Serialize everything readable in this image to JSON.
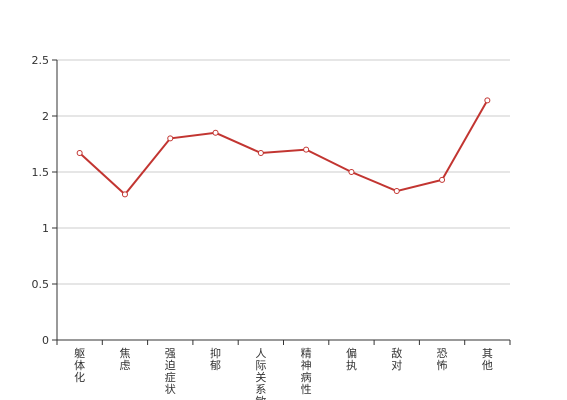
{
  "chart_data": {
    "type": "line",
    "categories": [
      "躯体化",
      "焦虑",
      "强迫症状",
      "抑郁",
      "人际关系敏感",
      "精神病性",
      "偏执",
      "敌对",
      "恐怖",
      "其他"
    ],
    "series": [
      {
        "color": "#c23531",
        "values": [
          1.67,
          1.3,
          1.8,
          1.85,
          1.67,
          1.7,
          1.5,
          1.33,
          1.43,
          2.14
        ]
      }
    ],
    "ylim": [
      0,
      2.5
    ],
    "yticks": [
      0,
      0.5,
      1,
      1.5,
      2,
      2.5
    ],
    "grid": true
  }
}
